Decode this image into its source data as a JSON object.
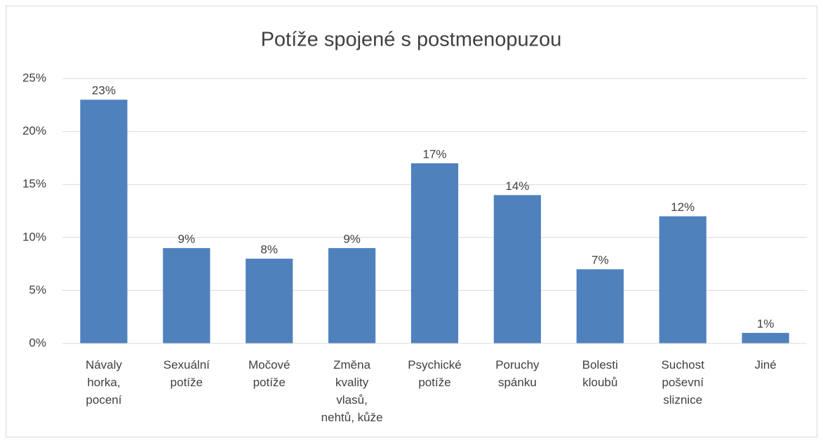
{
  "chart_data": {
    "type": "bar",
    "title": "Potíže spojené s postmenopuzou",
    "categories": [
      "Návaly horka, pocení",
      "Sexuální potíže",
      "Močové potíže",
      "Změna kvality vlasů, nehtů, kůže",
      "Psychické potíže",
      "Poruchy spánku",
      "Bolesti kloubů",
      "Suchost poševní sliznice",
      "Jiné"
    ],
    "values": [
      23,
      9,
      8,
      9,
      17,
      14,
      7,
      12,
      1
    ],
    "value_labels": [
      "23%",
      "9%",
      "8%",
      "9%",
      "17%",
      "14%",
      "7%",
      "12%",
      "1%"
    ],
    "color": "#4f81bd",
    "ylim": [
      0,
      25
    ],
    "yticks": [
      {
        "value": 0,
        "label": "0%"
      },
      {
        "value": 5,
        "label": "5%"
      },
      {
        "value": 10,
        "label": "10%"
      },
      {
        "value": 15,
        "label": "15%"
      },
      {
        "value": 20,
        "label": "20%"
      },
      {
        "value": 25,
        "label": "25%"
      }
    ],
    "grid": true
  }
}
